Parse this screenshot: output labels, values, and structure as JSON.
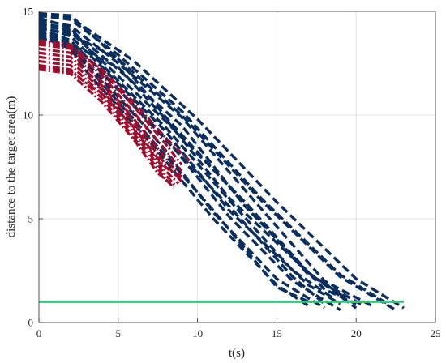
{
  "chart_data": {
    "type": "line",
    "xlabel": "t(s)",
    "ylabel": "distance to the target area(m)",
    "xlim": [
      0,
      25
    ],
    "ylim": [
      0,
      15
    ],
    "xticks": [
      0,
      5,
      10,
      15,
      20,
      25
    ],
    "yticks": [
      0,
      5,
      10,
      15
    ],
    "grid": true,
    "threshold_line": {
      "y": 1.0,
      "x": [
        0,
        23
      ],
      "color": "#2ecc71"
    },
    "colors": {
      "blue": "#0b2e5e",
      "red": "#9b0f2f",
      "green": "#2ecc71",
      "grid": "#dcdcdc"
    },
    "series": [
      {
        "color": "#0b2e5e",
        "x": [
          0,
          2,
          6,
          10,
          15,
          20,
          23
        ],
        "y": [
          14.9,
          14.7,
          12.6,
          9.8,
          5.8,
          2.1,
          0.7
        ]
      },
      {
        "color": "#0b2e5e",
        "x": [
          0,
          2,
          5,
          9,
          14,
          19,
          22
        ],
        "y": [
          14.8,
          14.6,
          12.9,
          10.2,
          6.0,
          2.3,
          0.9
        ]
      },
      {
        "color": "#0b2e5e",
        "x": [
          0,
          2,
          5,
          9,
          14,
          18,
          21
        ],
        "y": [
          14.6,
          14.3,
          12.5,
          9.9,
          5.5,
          2.0,
          0.8
        ]
      },
      {
        "color": "#0b2e5e",
        "x": [
          0,
          2,
          5,
          9,
          13,
          18,
          20
        ],
        "y": [
          14.5,
          14.1,
          12.2,
          9.5,
          5.6,
          1.6,
          0.9
        ]
      },
      {
        "color": "#0b2e5e",
        "x": [
          0,
          2,
          4,
          8,
          13,
          17,
          20
        ],
        "y": [
          14.4,
          14.0,
          12.6,
          9.7,
          5.8,
          2.4,
          0.7
        ]
      },
      {
        "color": "#0b2e5e",
        "x": [
          0,
          2,
          4,
          8,
          12,
          17,
          19
        ],
        "y": [
          14.3,
          13.8,
          12.3,
          9.2,
          5.4,
          1.8,
          0.9
        ]
      },
      {
        "color": "#0b2e5e",
        "x": [
          0,
          2,
          4,
          8,
          12,
          16,
          19
        ],
        "y": [
          14.2,
          13.6,
          12.0,
          8.9,
          5.1,
          2.0,
          0.6
        ]
      },
      {
        "color": "#0b2e5e",
        "x": [
          0,
          2,
          4,
          7,
          12,
          16,
          18
        ],
        "y": [
          14.1,
          13.5,
          12.1,
          9.6,
          5.6,
          2.2,
          0.9
        ]
      },
      {
        "color": "#0b2e5e",
        "x": [
          0,
          2,
          4,
          7,
          11,
          15,
          18
        ],
        "y": [
          14.0,
          13.4,
          11.7,
          9.2,
          5.3,
          2.1,
          0.7
        ]
      },
      {
        "color": "#0b2e5e",
        "x": [
          0,
          2,
          4,
          7,
          11,
          15,
          17
        ],
        "y": [
          13.9,
          13.3,
          11.5,
          8.9,
          5.4,
          1.7,
          1.0
        ]
      },
      {
        "color": "#0b2e5e",
        "x": [
          0,
          2,
          3,
          7,
          11,
          15,
          17
        ],
        "y": [
          13.8,
          13.2,
          12.1,
          8.7,
          5.0,
          1.8,
          0.8
        ]
      },
      {
        "color": "#0b2e5e",
        "x": [
          0,
          2,
          4,
          8,
          12,
          16,
          18.5
        ],
        "y": [
          14.7,
          14.2,
          12.4,
          9.4,
          5.9,
          2.5,
          1.2
        ]
      },
      {
        "color": "#0b2e5e",
        "x": [
          0,
          2,
          5,
          8,
          13,
          17,
          20.5
        ],
        "y": [
          14.2,
          13.9,
          12.7,
          9.9,
          5.7,
          2.3,
          0.8
        ]
      },
      {
        "color": "#0b2e5e",
        "x": [
          0,
          2,
          5,
          8,
          12,
          17,
          19.5
        ],
        "y": [
          13.7,
          13.4,
          12.3,
          9.8,
          6.0,
          2.4,
          1.1
        ]
      },
      {
        "color": "#0b2e5e",
        "x": [
          0,
          2,
          5,
          9,
          14,
          19,
          22.5
        ],
        "y": [
          14.9,
          14.8,
          12.7,
          10.0,
          5.9,
          2.2,
          0.6
        ]
      },
      {
        "color": "#9b0f2f",
        "x": [
          0,
          2,
          4,
          6,
          8,
          9
        ],
        "y": [
          13.6,
          13.4,
          12.1,
          10.4,
          8.6,
          7.6
        ]
      },
      {
        "color": "#9b0f2f",
        "x": [
          0,
          2,
          4,
          6,
          8,
          9
        ],
        "y": [
          13.4,
          13.2,
          11.9,
          10.1,
          8.3,
          7.3
        ]
      },
      {
        "color": "#9b0f2f",
        "x": [
          0,
          2,
          4,
          6,
          8,
          9
        ],
        "y": [
          13.2,
          13.0,
          11.6,
          9.8,
          7.9,
          7.0
        ]
      },
      {
        "color": "#9b0f2f",
        "x": [
          0,
          2,
          4,
          6,
          8,
          9
        ],
        "y": [
          13.0,
          12.8,
          11.4,
          9.6,
          7.6,
          6.8
        ]
      },
      {
        "color": "#9b0f2f",
        "x": [
          0,
          2,
          4,
          6,
          8,
          8.8
        ],
        "y": [
          12.8,
          12.6,
          11.2,
          9.3,
          7.3,
          6.7
        ]
      },
      {
        "color": "#9b0f2f",
        "x": [
          0,
          2,
          4,
          6,
          8,
          8.6
        ],
        "y": [
          12.6,
          12.4,
          11.0,
          9.1,
          7.1,
          6.6
        ]
      },
      {
        "color": "#9b0f2f",
        "x": [
          0,
          2,
          4,
          6,
          8,
          8.5
        ],
        "y": [
          12.4,
          12.2,
          10.8,
          8.9,
          6.9,
          6.5
        ]
      },
      {
        "color": "#9b0f2f",
        "x": [
          0,
          2,
          4,
          6,
          7.5,
          8.3
        ],
        "y": [
          12.2,
          12.0,
          10.6,
          8.8,
          7.2,
          6.7
        ]
      },
      {
        "color": "#9b0f2f",
        "x": [
          0,
          2,
          4,
          6,
          8,
          9.5
        ],
        "y": [
          13.5,
          13.3,
          12.2,
          10.6,
          8.9,
          7.8
        ]
      },
      {
        "color": "#9b0f2f",
        "x": [
          0,
          2,
          4,
          6,
          7.8,
          9
        ],
        "y": [
          12.3,
          12.1,
          11.0,
          9.4,
          7.6,
          6.9
        ]
      }
    ]
  }
}
